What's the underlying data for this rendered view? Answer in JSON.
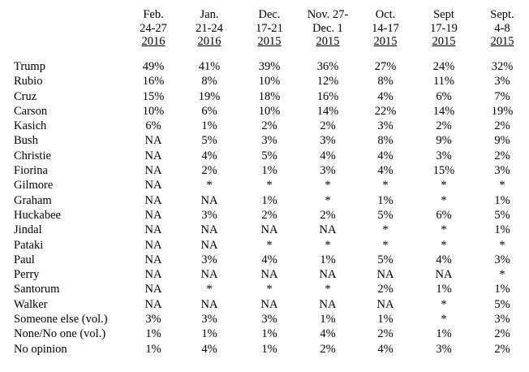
{
  "columns": [
    {
      "lines": [
        "Feb.",
        "24-27"
      ],
      "year": "2016"
    },
    {
      "lines": [
        "Jan.",
        "21-24"
      ],
      "year": "2016"
    },
    {
      "lines": [
        "Dec.",
        "17-21"
      ],
      "year": "2015"
    },
    {
      "lines": [
        "Nov. 27-",
        "Dec. 1"
      ],
      "year": "2015"
    },
    {
      "lines": [
        "Oct.",
        "14-17"
      ],
      "year": "2015"
    },
    {
      "lines": [
        "Sept",
        "17-19"
      ],
      "year": "2015"
    },
    {
      "lines": [
        "Sept.",
        "4-8"
      ],
      "year": "2015"
    }
  ],
  "rows": [
    {
      "name": "Trump",
      "values": [
        "49%",
        "41%",
        "39%",
        "36%",
        "27%",
        "24%",
        "32%"
      ]
    },
    {
      "name": "Rubio",
      "values": [
        "16%",
        "8%",
        "10%",
        "12%",
        "8%",
        "11%",
        "3%"
      ]
    },
    {
      "name": "Cruz",
      "values": [
        "15%",
        "19%",
        "18%",
        "16%",
        "4%",
        "6%",
        "7%"
      ]
    },
    {
      "name": "Carson",
      "values": [
        "10%",
        "6%",
        "10%",
        "14%",
        "22%",
        "14%",
        "19%"
      ]
    },
    {
      "name": "Kasich",
      "values": [
        "6%",
        "1%",
        "2%",
        "2%",
        "3%",
        "2%",
        "2%"
      ]
    },
    {
      "name": "Bush",
      "values": [
        "NA",
        "5%",
        "3%",
        "3%",
        "8%",
        "9%",
        "9%"
      ]
    },
    {
      "name": "Christie",
      "values": [
        "NA",
        "4%",
        "5%",
        "4%",
        "4%",
        "3%",
        "2%"
      ]
    },
    {
      "name": "Fiorina",
      "values": [
        "NA",
        "2%",
        "1%",
        "3%",
        "4%",
        "15%",
        "3%"
      ]
    },
    {
      "name": "Gilmore",
      "values": [
        "NA",
        "*",
        "*",
        "*",
        "*",
        "*",
        "*"
      ]
    },
    {
      "name": "Graham",
      "values": [
        "NA",
        "NA",
        "1%",
        "*",
        "1%",
        "*",
        "1%"
      ]
    },
    {
      "name": "Huckabee",
      "values": [
        "NA",
        "3%",
        "2%",
        "2%",
        "5%",
        "6%",
        "5%"
      ]
    },
    {
      "name": "Jindal",
      "values": [
        "NA",
        "NA",
        "NA",
        "NA",
        "*",
        "*",
        "1%"
      ]
    },
    {
      "name": "Pataki",
      "values": [
        "NA",
        "NA",
        "*",
        "*",
        "*",
        "*",
        "*"
      ]
    },
    {
      "name": "Paul",
      "values": [
        "NA",
        "3%",
        "4%",
        "1%",
        "5%",
        "4%",
        "3%"
      ]
    },
    {
      "name": "Perry",
      "values": [
        "NA",
        "NA",
        "NA",
        "NA",
        "NA",
        "NA",
        "*"
      ]
    },
    {
      "name": "Santorum",
      "values": [
        "NA",
        "*",
        "*",
        "*",
        "2%",
        "1%",
        "1%"
      ]
    },
    {
      "name": "Walker",
      "values": [
        "NA",
        "NA",
        "NA",
        "NA",
        "NA",
        "*",
        "5%"
      ]
    },
    {
      "name": "Someone else (vol.)",
      "values": [
        "3%",
        "3%",
        "3%",
        "1%",
        "1%",
        "*",
        "3%"
      ]
    },
    {
      "name": "None/No one (vol.)",
      "values": [
        "1%",
        "1%",
        "1%",
        "4%",
        "2%",
        "1%",
        "2%"
      ]
    },
    {
      "name": "No opinion",
      "values": [
        "1%",
        "4%",
        "1%",
        "2%",
        "4%",
        "3%",
        "2%"
      ]
    }
  ]
}
